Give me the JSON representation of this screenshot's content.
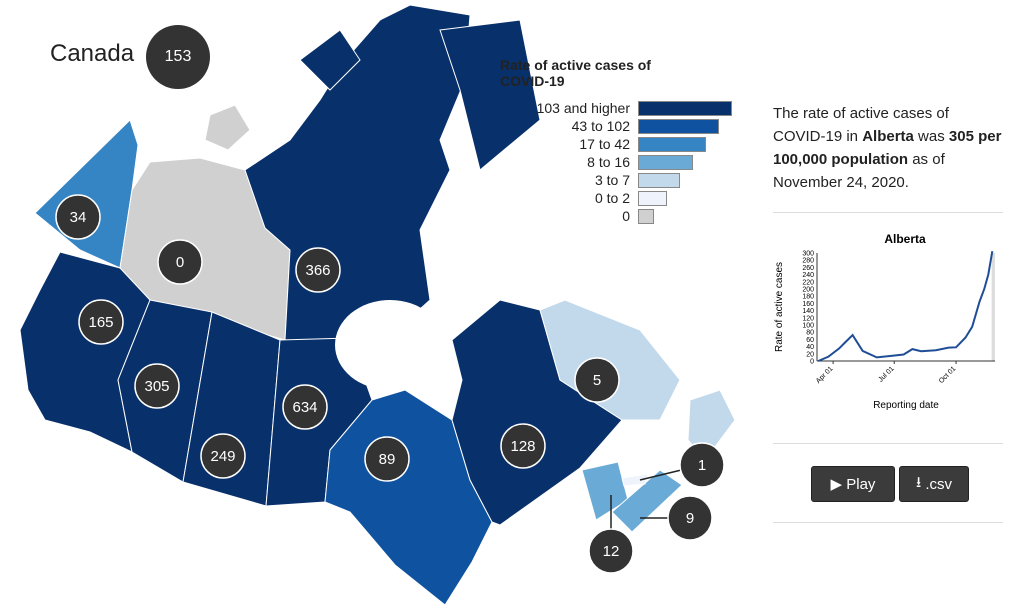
{
  "title": {
    "label": "Canada",
    "value": "153"
  },
  "legend": {
    "title": "Rate of active cases of COVID-19",
    "items": [
      {
        "label": "103 and higher",
        "color": "#08306b"
      },
      {
        "label": "43 to 102",
        "color": "#0f53a0"
      },
      {
        "label": "17 to 42",
        "color": "#3585c4"
      },
      {
        "label": "8 to 16",
        "color": "#69aad6"
      },
      {
        "label": "3 to 7",
        "color": "#c2d9ec"
      },
      {
        "label": "0 to 2",
        "color": "#eef3fc"
      },
      {
        "label": "0",
        "color": "#d0d0d0"
      }
    ]
  },
  "provinces": [
    {
      "name": "Yukon",
      "value": "34",
      "color": "#3585c4"
    },
    {
      "name": "Northwest Territories",
      "value": "0",
      "color": "#d0d0d0"
    },
    {
      "name": "Nunavut",
      "value": "366",
      "color": "#08306b"
    },
    {
      "name": "British Columbia",
      "value": "165",
      "color": "#08306b"
    },
    {
      "name": "Alberta",
      "value": "305",
      "color": "#08306b"
    },
    {
      "name": "Saskatchewan",
      "value": "249",
      "color": "#08306b"
    },
    {
      "name": "Manitoba",
      "value": "634",
      "color": "#08306b"
    },
    {
      "name": "Ontario",
      "value": "89",
      "color": "#0f53a0"
    },
    {
      "name": "Quebec",
      "value": "128",
      "color": "#08306b"
    },
    {
      "name": "Newfoundland and Labrador",
      "value": "5",
      "color": "#c2d9ec"
    },
    {
      "name": "New Brunswick",
      "value": "12",
      "color": "#69aad6"
    },
    {
      "name": "Nova Scotia",
      "value": "9",
      "color": "#69aad6"
    },
    {
      "name": "Prince Edward Island",
      "value": "1",
      "color": "#eef3fc"
    }
  ],
  "info": {
    "pre": "The rate of active cases of COVID-19 in ",
    "province": "Alberta",
    "mid": " was ",
    "rate": "305 per 100,000 population",
    "post": " as of November 24, 2020."
  },
  "buttons": {
    "play": "Play",
    "csv": ".csv"
  },
  "chart_data": {
    "type": "line",
    "title": "Alberta",
    "xlabel": "Reporting date",
    "ylabel": "Rate of active cases",
    "ylim": [
      0,
      300
    ],
    "yticks": [
      "0",
      "20",
      "40",
      "60",
      "80",
      "100",
      "120",
      "140",
      "160",
      "180",
      "200",
      "220",
      "240",
      "260",
      "280",
      "300"
    ],
    "xticks": [
      "Apr 01",
      "Jul 01",
      "Oct 01"
    ],
    "x": [
      "2020-03-10",
      "2020-03-25",
      "2020-04-10",
      "2020-04-18",
      "2020-04-30",
      "2020-05-15",
      "2020-06-05",
      "2020-06-25",
      "2020-07-15",
      "2020-07-28",
      "2020-08-10",
      "2020-09-01",
      "2020-09-20",
      "2020-10-01",
      "2020-10-15",
      "2020-10-25",
      "2020-11-05",
      "2020-11-12",
      "2020-11-18",
      "2020-11-24"
    ],
    "y": [
      0,
      12,
      35,
      50,
      72,
      28,
      10,
      14,
      18,
      33,
      27,
      30,
      37,
      38,
      65,
      95,
      165,
      200,
      240,
      305
    ]
  }
}
